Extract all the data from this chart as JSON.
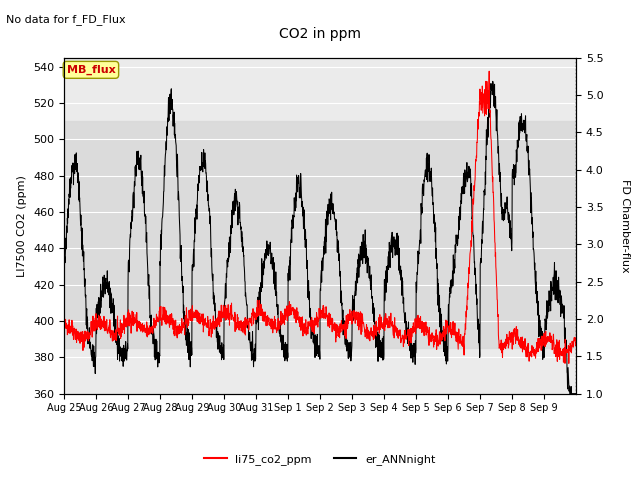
{
  "title": "CO2 in ppm",
  "subtitle": "No data for f_FD_Flux",
  "ylabel_left": "LI7500 CO2 (ppm)",
  "ylabel_right": "FD Chamber-flux",
  "ylim_left": [
    360,
    545
  ],
  "ylim_right": [
    1.0,
    5.5
  ],
  "yticks_left": [
    360,
    380,
    400,
    420,
    440,
    460,
    480,
    500,
    520,
    540
  ],
  "yticks_right": [
    1.0,
    1.5,
    2.0,
    2.5,
    3.0,
    3.5,
    4.0,
    4.5,
    5.0,
    5.5
  ],
  "shaded_band": [
    385,
    510
  ],
  "legend_labels": [
    "li75_co2_ppm",
    "er_ANNnight"
  ],
  "legend_colors": [
    "red",
    "black"
  ],
  "mb_flux_box_color": "#ffff99",
  "mb_flux_text_color": "#cc0000",
  "n_points": 2000,
  "seed": 42
}
